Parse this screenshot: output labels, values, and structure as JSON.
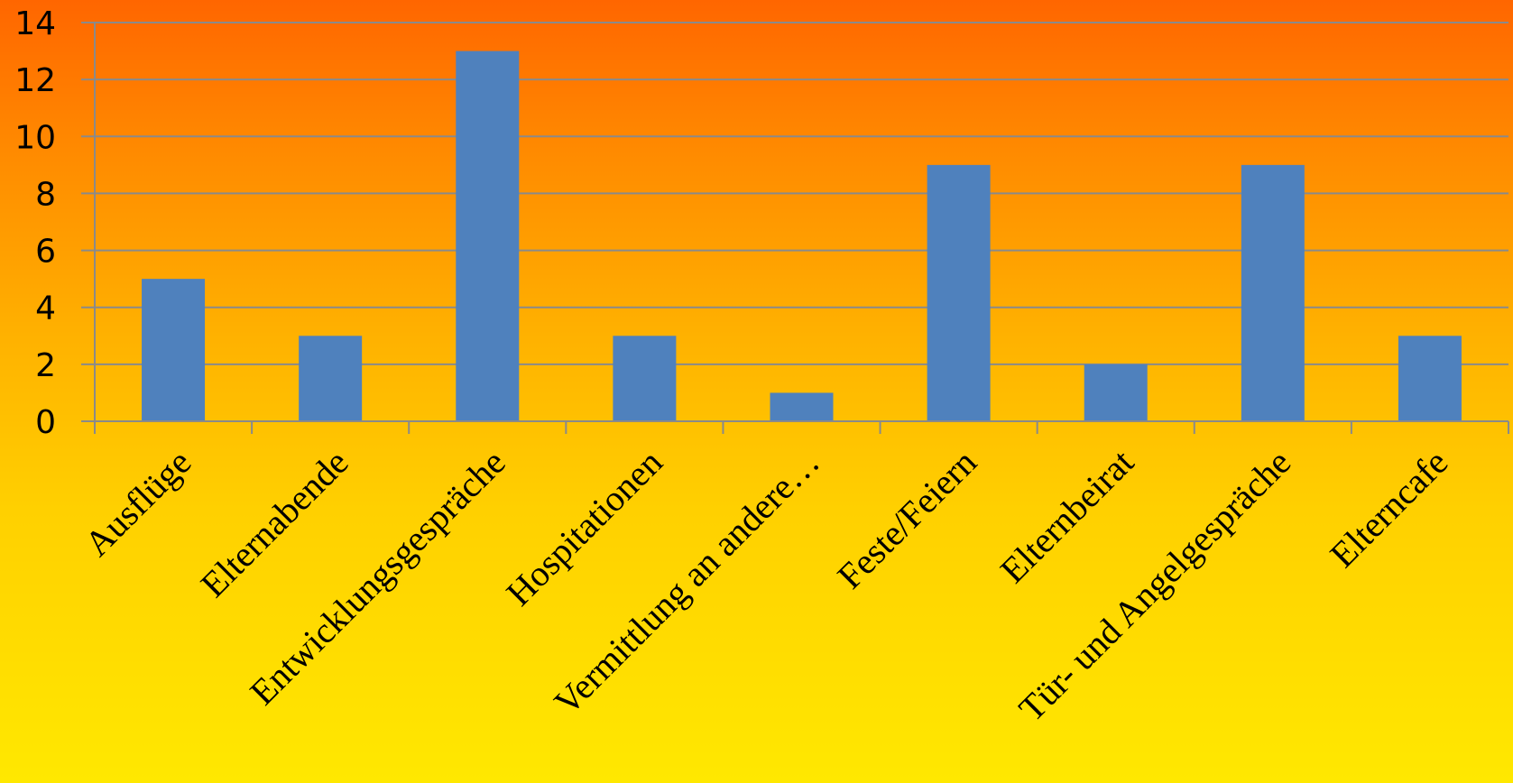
{
  "chart_data": {
    "type": "bar",
    "title": "",
    "xlabel": "",
    "ylabel": "",
    "categories": [
      "Ausflüge",
      "Elternabende",
      "Entwicklungsgespräche",
      "Hospitationen",
      "Vermittlung an andere…",
      "Feste/Feiern",
      "Elternbeirat",
      "Tür- und Angelgespräche",
      "Elterncafe"
    ],
    "values": [
      5,
      3,
      13,
      3,
      1,
      9,
      2,
      9,
      3
    ],
    "ylim": [
      0,
      14
    ],
    "yticks": [
      "0",
      "2",
      "4",
      "6",
      "8",
      "10",
      "12",
      "14"
    ],
    "grid": true,
    "legend": "none",
    "colors": {
      "bar": "#4f81bd",
      "gridline": "#8a8a8a",
      "text": "#000000"
    }
  }
}
